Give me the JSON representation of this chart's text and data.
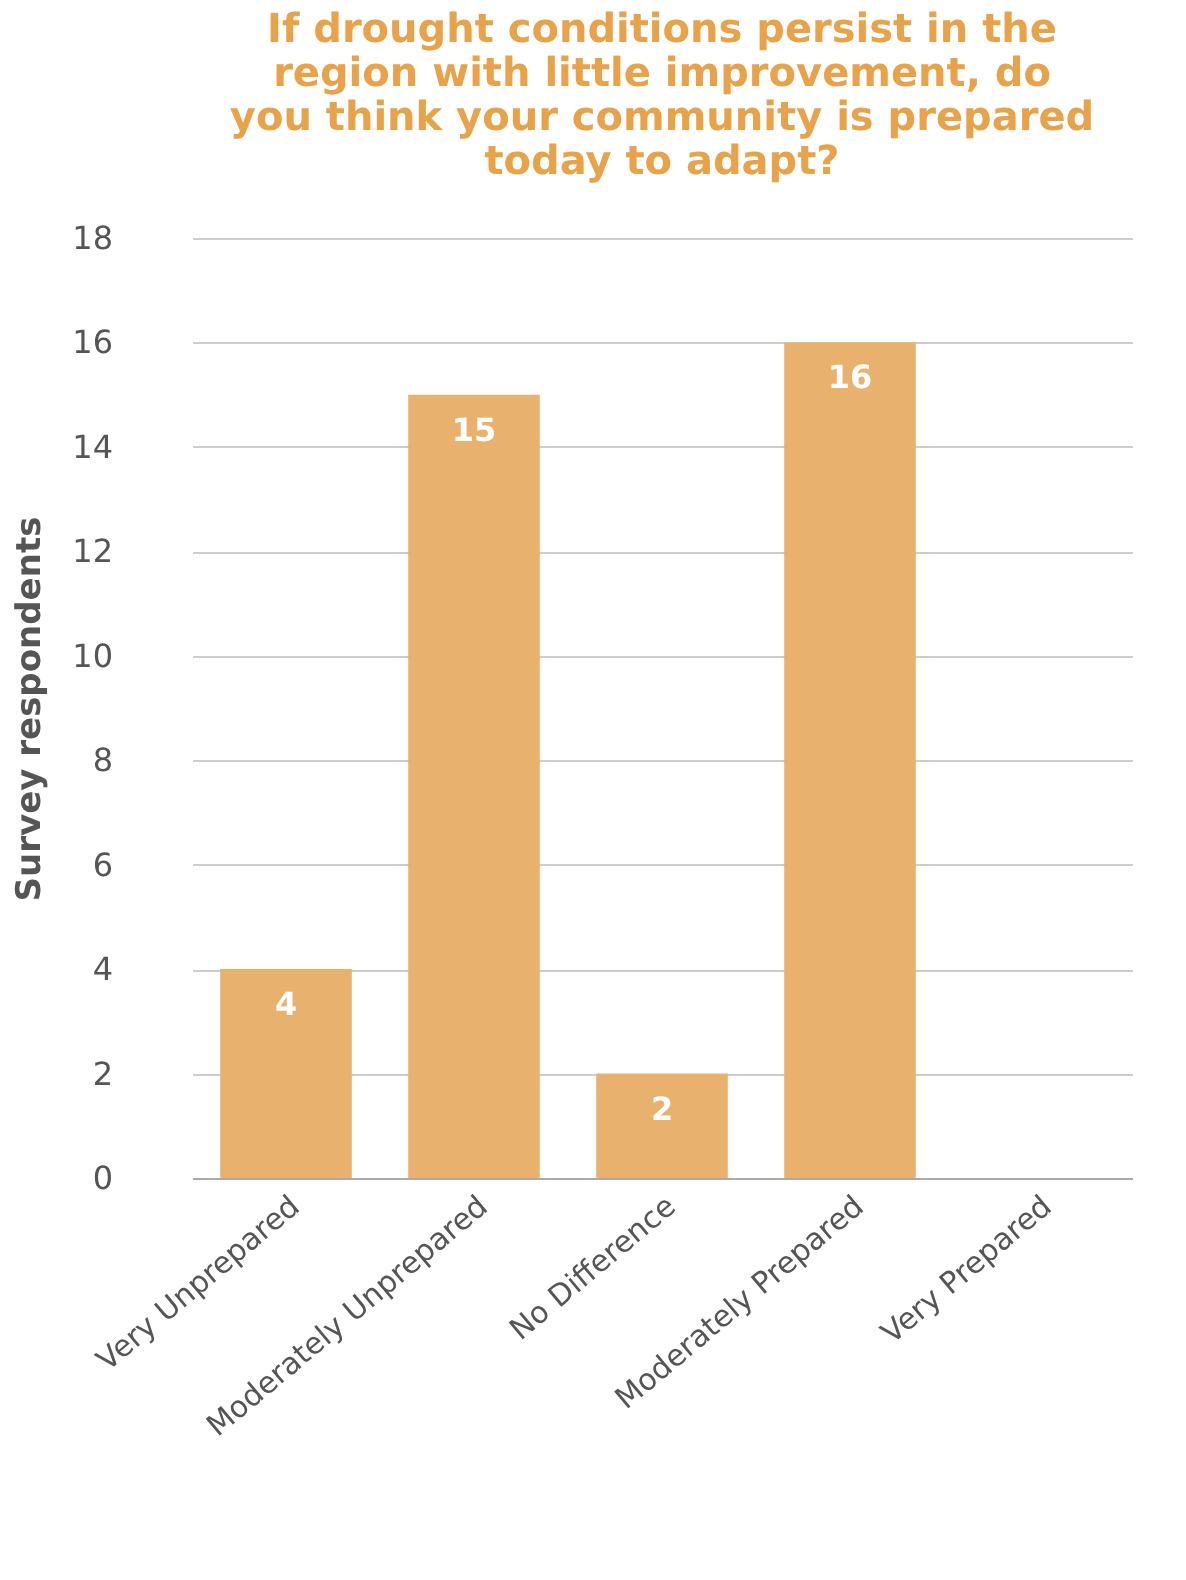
{
  "chart_data": {
    "type": "bar",
    "title": "If drought conditions persist in the region with little improvement, do you think your community is prepared today to adapt?",
    "ylabel": "Survey respondents",
    "categories": [
      "Very Unprepared",
      "Moderately Unprepared",
      "No Difference",
      "Moderately Prepared",
      "Very Prepared"
    ],
    "values": [
      4,
      15,
      2,
      16,
      0
    ],
    "value_labels": [
      "4",
      "15",
      "2",
      "16",
      null
    ],
    "color": "#e8b26e",
    "ylim": [
      0,
      18
    ],
    "yticks": [
      0,
      2,
      4,
      6,
      8,
      10,
      12,
      14,
      16,
      18
    ],
    "grid": "y"
  }
}
